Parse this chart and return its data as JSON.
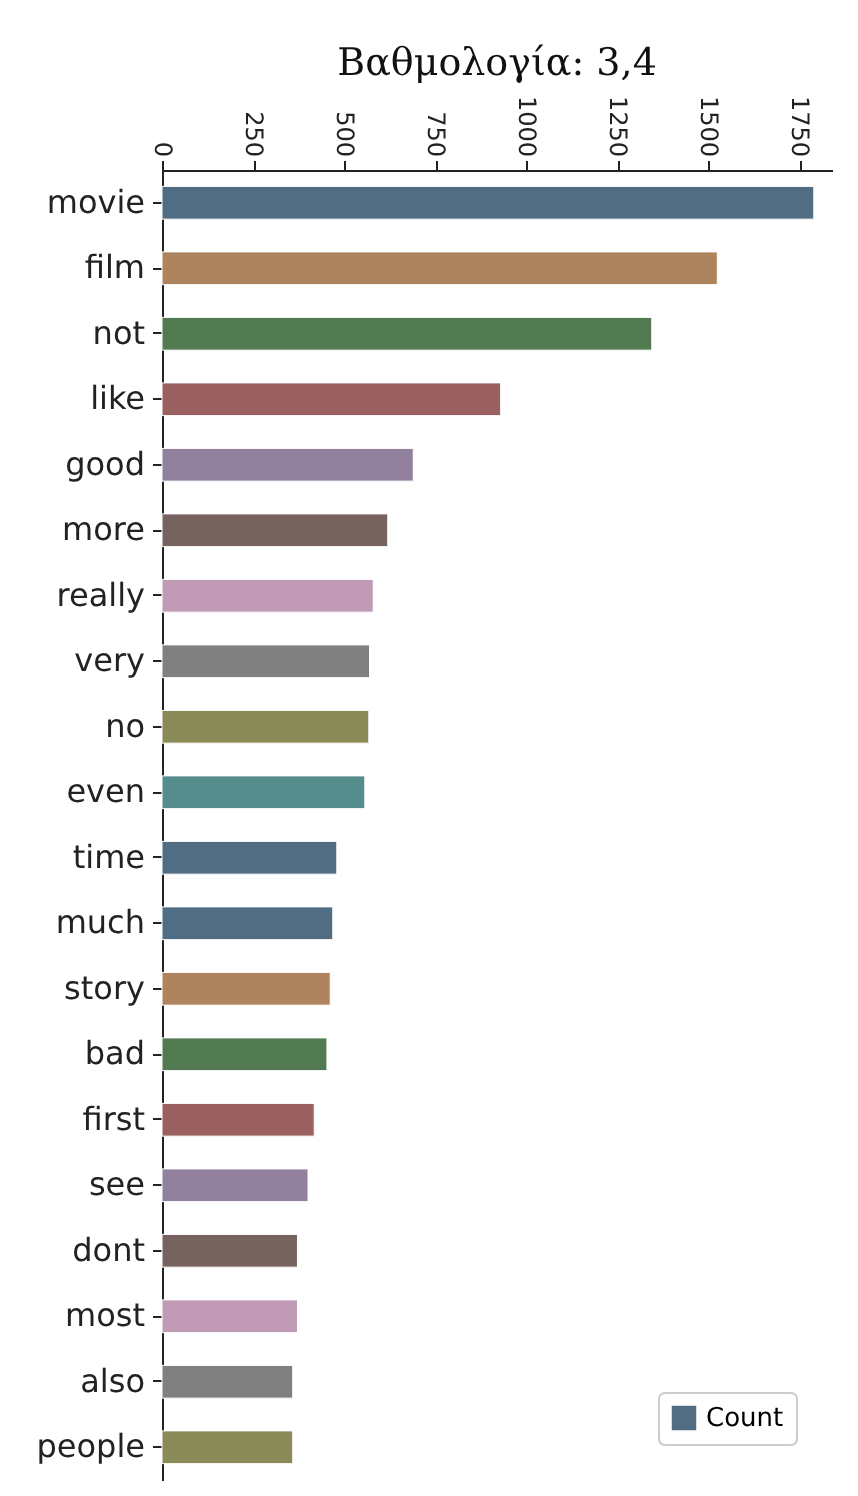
{
  "chart_data": {
    "type": "bar",
    "orientation": "horizontal",
    "title": "Βαθμολογία: 3,4",
    "categories": [
      "movie",
      "film",
      "not",
      "like",
      "good",
      "more",
      "really",
      "very",
      "no",
      "even",
      "time",
      "much",
      "story",
      "bad",
      "first",
      "see",
      "dont",
      "most",
      "also",
      "people"
    ],
    "series": [
      {
        "name": "Count",
        "color": "#516d84",
        "values": [
          1790,
          1525,
          1345,
          930,
          690,
          620,
          580,
          570,
          568,
          557,
          480,
          469,
          462,
          453,
          418,
          401,
          372,
          372,
          359,
          359
        ],
        "colors": [
          "#516d84",
          "#ae845e",
          "#527a50",
          "#9a6060",
          "#92819e",
          "#76625e",
          "#c19ab5",
          "#808080",
          "#8a8a58",
          "#558c8c",
          "#516d84",
          "#516d84",
          "#ae845e",
          "#527a50",
          "#9a6060",
          "#92819e",
          "#76625e",
          "#c19ab5",
          "#808080",
          "#8a8a58"
        ]
      }
    ],
    "xlim": [
      0,
      1840
    ],
    "xticks": [
      0,
      250,
      500,
      750,
      1000,
      1250,
      1500,
      1750
    ],
    "legend": "bottom right",
    "grid": false
  }
}
